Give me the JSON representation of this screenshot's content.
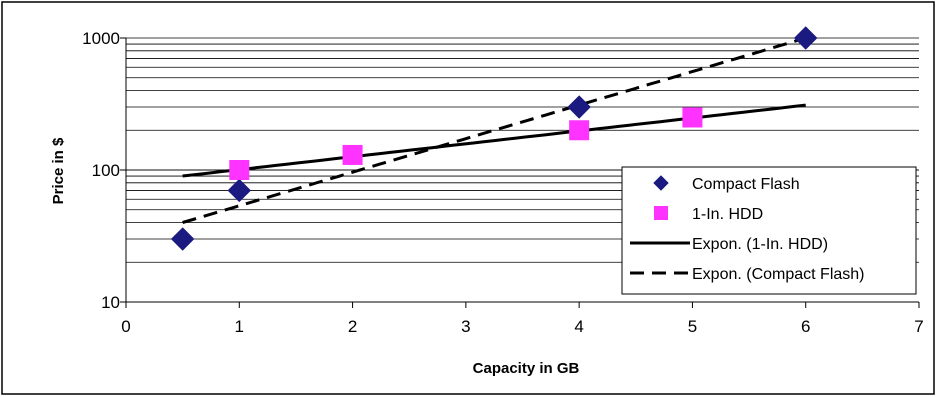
{
  "chart_data": {
    "type": "scatter",
    "title": "",
    "xlabel": "Capacity in GB",
    "ylabel": "Price in $",
    "xlim": [
      0,
      7
    ],
    "ylim": [
      10,
      1000
    ],
    "y_scale": "log",
    "x_ticks": [
      "0",
      "1",
      "2",
      "3",
      "4",
      "5",
      "6",
      "7"
    ],
    "y_ticks": [
      "10",
      "100",
      "1000"
    ],
    "grid": "horizontal minor lines",
    "legend_position": "right",
    "series": [
      {
        "name": "Compact Flash",
        "kind": "markers",
        "marker": "diamond",
        "color": "#1a1a80",
        "x": [
          0.5,
          1,
          4,
          6
        ],
        "y": [
          30,
          70,
          300,
          1000
        ]
      },
      {
        "name": "1-In. HDD",
        "kind": "markers",
        "marker": "square",
        "color": "#ff33ff",
        "x": [
          1,
          2,
          4,
          5
        ],
        "y": [
          100,
          130,
          200,
          250
        ]
      },
      {
        "name": "Expon. (1-In. HDD)",
        "kind": "trendline",
        "dash": "solid",
        "color": "#000000",
        "x": [
          0.5,
          6
        ],
        "y": [
          90,
          310
        ]
      },
      {
        "name": "Expon. (Compact Flash)",
        "kind": "trendline",
        "dash": "dashed",
        "color": "#000000",
        "x": [
          0.5,
          6
        ],
        "y": [
          40,
          1000
        ]
      }
    ]
  }
}
